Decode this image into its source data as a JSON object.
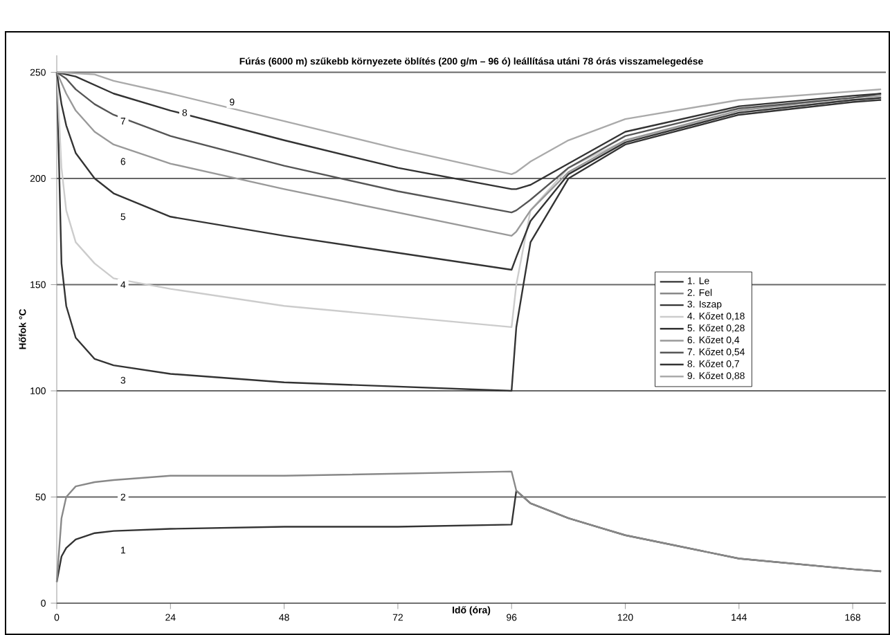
{
  "chart_data": {
    "type": "line",
    "title": "Fúrás (6000 m) szűkebb környezete öblítés (200 g/m – 96 ó) leállítása utáni 78 órás visszamelegedése",
    "xlabel": "Idő (óra)",
    "ylabel": "Hőfok °C",
    "xlim": [
      0,
      175
    ],
    "ylim": [
      0,
      258
    ],
    "xticks": [
      0,
      24,
      48,
      72,
      96,
      120,
      144,
      168
    ],
    "yticks": [
      0,
      50,
      100,
      150,
      200,
      250
    ],
    "grid": "y",
    "legend": "right",
    "marker": "none",
    "line_style": "solid",
    "series": [
      {
        "name": "1. Le",
        "color": "#333333",
        "x": [
          0,
          1,
          2,
          4,
          8,
          12,
          24,
          48,
          72,
          96,
          97,
          100,
          108,
          120,
          144,
          168,
          174
        ],
        "values": [
          10,
          22,
          26,
          30,
          33,
          34,
          35,
          36,
          36,
          37,
          53,
          47,
          40,
          32,
          21,
          16,
          15
        ]
      },
      {
        "name": "2. Fel",
        "color": "#888888",
        "x": [
          0,
          1,
          2,
          4,
          8,
          12,
          24,
          48,
          72,
          96,
          97,
          100,
          108,
          120,
          144,
          168,
          174
        ],
        "values": [
          10,
          40,
          50,
          55,
          57,
          58,
          60,
          60,
          61,
          62,
          53,
          47,
          40,
          32,
          21,
          16,
          15
        ]
      },
      {
        "name": "3. Iszap",
        "color": "#333333",
        "x": [
          0,
          1,
          2,
          4,
          8,
          12,
          24,
          48,
          72,
          96,
          97,
          100,
          108,
          120,
          144,
          168,
          174
        ],
        "values": [
          250,
          160,
          140,
          125,
          115,
          112,
          108,
          104,
          102,
          100,
          130,
          170,
          200,
          216,
          230,
          236,
          237
        ]
      },
      {
        "name": "4. Kőzet 0,18",
        "color": "#cccccc",
        "x": [
          0,
          1,
          2,
          4,
          8,
          12,
          24,
          48,
          72,
          96,
          97,
          100,
          108,
          120,
          144,
          168,
          174
        ],
        "values": [
          250,
          205,
          185,
          170,
          160,
          153,
          148,
          140,
          135,
          130,
          150,
          185,
          205,
          218,
          231,
          237,
          238
        ]
      },
      {
        "name": "5. Kőzet 0,28",
        "color": "#333333",
        "x": [
          0,
          1,
          2,
          4,
          8,
          12,
          24,
          48,
          72,
          96,
          97,
          100,
          108,
          120,
          144,
          168,
          174
        ],
        "values": [
          250,
          235,
          225,
          212,
          200,
          193,
          182,
          173,
          165,
          157,
          163,
          180,
          202,
          217,
          231,
          237,
          238
        ]
      },
      {
        "name": "6. Kőzet 0,4",
        "color": "#999999",
        "x": [
          0,
          2,
          4,
          8,
          12,
          24,
          48,
          72,
          96,
          97,
          100,
          108,
          120,
          144,
          168,
          174
        ],
        "values": [
          250,
          240,
          232,
          222,
          216,
          207,
          195,
          184,
          173,
          175,
          185,
          203,
          218,
          232,
          238,
          239
        ]
      },
      {
        "name": "7. Kőzet 0,54",
        "color": "#555555",
        "x": [
          0,
          2,
          4,
          8,
          12,
          24,
          48,
          72,
          96,
          97,
          100,
          108,
          120,
          144,
          168,
          174
        ],
        "values": [
          250,
          247,
          242,
          235,
          230,
          220,
          206,
          194,
          184,
          185,
          190,
          205,
          220,
          233,
          238,
          240
        ]
      },
      {
        "name": "8. Kőzet 0,7",
        "color": "#333333",
        "x": [
          0,
          4,
          8,
          12,
          24,
          48,
          72,
          96,
          97,
          100,
          108,
          120,
          144,
          168,
          174
        ],
        "values": [
          250,
          248,
          244,
          240,
          232,
          218,
          205,
          195,
          195,
          197,
          207,
          222,
          234,
          239,
          240
        ]
      },
      {
        "name": "9. Kőzet 0,88",
        "color": "#aaaaaa",
        "x": [
          0,
          8,
          12,
          24,
          48,
          72,
          96,
          97,
          100,
          108,
          120,
          144,
          168,
          174
        ],
        "values": [
          250,
          249,
          246,
          240,
          227,
          214,
          202,
          203,
          208,
          218,
          228,
          237,
          241,
          242
        ]
      }
    ],
    "annotations": [
      {
        "text": "1",
        "x": 14,
        "y": 25
      },
      {
        "text": "2",
        "x": 14,
        "y": 50
      },
      {
        "text": "3",
        "x": 14,
        "y": 105
      },
      {
        "text": "4",
        "x": 14,
        "y": 150
      },
      {
        "text": "5",
        "x": 14,
        "y": 182
      },
      {
        "text": "6",
        "x": 14,
        "y": 208
      },
      {
        "text": "7",
        "x": 14,
        "y": 227
      },
      {
        "text": "8",
        "x": 27,
        "y": 231
      },
      {
        "text": "9",
        "x": 37,
        "y": 236
      }
    ]
  }
}
